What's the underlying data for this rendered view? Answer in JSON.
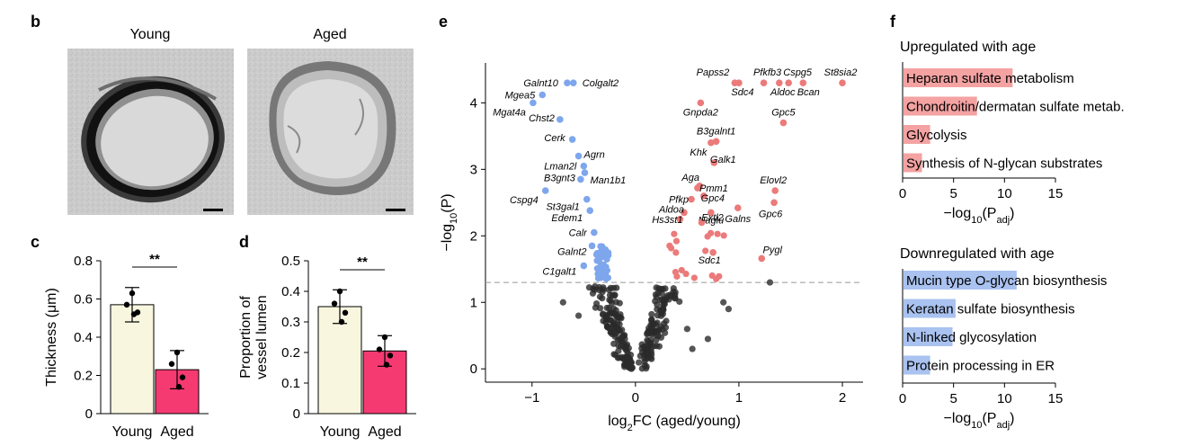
{
  "panels": {
    "b": {
      "label": "b",
      "images": [
        {
          "title": "Young",
          "alt": "Electron micrograph of young vessel cross-section"
        },
        {
          "title": "Aged",
          "alt": "Electron micrograph of aged vessel cross-section"
        }
      ]
    },
    "c": {
      "label": "c"
    },
    "d": {
      "label": "d"
    },
    "e": {
      "label": "e"
    },
    "f": {
      "label": "f"
    }
  },
  "chart_data": [
    {
      "id": "c",
      "type": "bar",
      "categories": [
        "Young",
        "Aged"
      ],
      "values": [
        0.57,
        0.23
      ],
      "errors": [
        0.09,
        0.1
      ],
      "colors": [
        "#f8f6df",
        "#f53a72"
      ],
      "points": [
        [
          0.63,
          0.57,
          0.53,
          0.52
        ],
        [
          0.32,
          0.26,
          0.19,
          0.14
        ]
      ],
      "ylabel": "Thickness (μm)",
      "ylim": [
        0,
        0.8
      ],
      "yticks": [
        0,
        0.2,
        0.4,
        0.6,
        0.8
      ],
      "yticklabels": [
        "0",
        "0.2",
        "0.4",
        "0.6",
        "0.8"
      ],
      "significance": "**"
    },
    {
      "id": "d",
      "type": "bar",
      "categories": [
        "Young",
        "Aged"
      ],
      "values": [
        0.35,
        0.205
      ],
      "errors": [
        0.055,
        0.05
      ],
      "colors": [
        "#f8f6df",
        "#f53a72"
      ],
      "points": [
        [
          0.4,
          0.36,
          0.33,
          0.3
        ],
        [
          0.25,
          0.21,
          0.19,
          0.16
        ]
      ],
      "ylabel": "Proportion of vessel lumen",
      "ylabel_lines": [
        "Proportion of",
        "vessel lumen"
      ],
      "ylim": [
        0,
        0.5
      ],
      "yticks": [
        0,
        0.1,
        0.2,
        0.3,
        0.4,
        0.5
      ],
      "yticklabels": [
        "0",
        "0.1",
        "0.2",
        "0.3",
        "0.4",
        "0.5"
      ],
      "significance": "**"
    },
    {
      "id": "e",
      "type": "scatter",
      "title": "",
      "xlabel": "log2FC (aged/young)",
      "ylabel": "−log10(P)",
      "xlim": [
        -1.45,
        2.2
      ],
      "ylim": [
        -0.2,
        4.6
      ],
      "xticks": [
        -1,
        0,
        1,
        2
      ],
      "xticklabels": [
        "−1",
        "0",
        "1",
        "2"
      ],
      "yticks": [
        0,
        1,
        2,
        3,
        4
      ],
      "yticklabels": [
        "0",
        "1",
        "2",
        "3",
        "4"
      ],
      "threshold": 1.3,
      "colors": {
        "down": "#7ea6ec",
        "up": "#ec7a7a",
        "ns": "#2a2a2a"
      },
      "labeled_genes": [
        {
          "gene": "Galnt10",
          "x": -0.66,
          "y": 4.3,
          "group": "down"
        },
        {
          "gene": "Colgalt2",
          "x": -0.6,
          "y": 4.3,
          "group": "down"
        },
        {
          "gene": "Mgea5",
          "x": -0.9,
          "y": 4.12,
          "group": "down"
        },
        {
          "gene": "Mgat4a",
          "x": -0.99,
          "y": 4.0,
          "group": "down"
        },
        {
          "gene": "Chst2",
          "x": -0.73,
          "y": 3.75,
          "group": "down"
        },
        {
          "gene": "Cerk",
          "x": -0.61,
          "y": 3.45,
          "group": "down"
        },
        {
          "gene": "Agrn",
          "x": -0.55,
          "y": 3.2,
          "group": "down"
        },
        {
          "gene": "Lman2l",
          "x": -0.5,
          "y": 3.05,
          "group": "down"
        },
        {
          "gene": "Man1b1",
          "x": -0.49,
          "y": 2.95,
          "group": "down"
        },
        {
          "gene": "B3gnt3",
          "x": -0.53,
          "y": 2.85,
          "group": "down"
        },
        {
          "gene": "Cspg4",
          "x": -0.87,
          "y": 2.68,
          "group": "down"
        },
        {
          "gene": "St3gal1",
          "x": -0.47,
          "y": 2.55,
          "group": "down"
        },
        {
          "gene": "Edem1",
          "x": -0.44,
          "y": 2.38,
          "group": "down"
        },
        {
          "gene": "Calr",
          "x": -0.4,
          "y": 2.05,
          "group": "down"
        },
        {
          "gene": "Galnt2",
          "x": -0.42,
          "y": 1.85,
          "group": "down"
        },
        {
          "gene": "C1galt1",
          "x": -0.5,
          "y": 1.55,
          "group": "down"
        },
        {
          "gene": "Papss2",
          "x": 0.96,
          "y": 4.3,
          "group": "up"
        },
        {
          "gene": "Pfkfb3",
          "x": 1.24,
          "y": 4.3,
          "group": "up"
        },
        {
          "gene": "Cspg5",
          "x": 1.48,
          "y": 4.3,
          "group": "up"
        },
        {
          "gene": "St8sia2",
          "x": 2.0,
          "y": 4.3,
          "group": "up"
        },
        {
          "gene": "Sdc4",
          "x": 1.0,
          "y": 4.3,
          "group": "up"
        },
        {
          "gene": "Aldoc",
          "x": 1.39,
          "y": 4.3,
          "group": "up"
        },
        {
          "gene": "Bcan",
          "x": 1.62,
          "y": 4.3,
          "group": "up"
        },
        {
          "gene": "Gnpda2",
          "x": 0.63,
          "y": 4.0,
          "group": "up"
        },
        {
          "gene": "Gpc5",
          "x": 1.43,
          "y": 3.7,
          "group": "up"
        },
        {
          "gene": "B3galnt1",
          "x": 0.78,
          "y": 3.42,
          "group": "up"
        },
        {
          "gene": "Khk",
          "x": 0.73,
          "y": 3.4,
          "group": "up"
        },
        {
          "gene": "Galk1",
          "x": 0.76,
          "y": 3.1,
          "group": "up"
        },
        {
          "gene": "Aga",
          "x": 0.62,
          "y": 2.75,
          "group": "up"
        },
        {
          "gene": "Pmm1",
          "x": 0.6,
          "y": 2.72,
          "group": "up"
        },
        {
          "gene": "Elovl2",
          "x": 1.35,
          "y": 2.68,
          "group": "up"
        },
        {
          "gene": "Pfkp",
          "x": 0.54,
          "y": 2.55,
          "group": "up"
        },
        {
          "gene": "Gpc4",
          "x": 0.66,
          "y": 2.6,
          "group": "up"
        },
        {
          "gene": "Gpc6",
          "x": 1.34,
          "y": 2.5,
          "group": "up"
        },
        {
          "gene": "Aldoa",
          "x": 0.47,
          "y": 2.35,
          "group": "up"
        },
        {
          "gene": "Naglu",
          "x": 0.73,
          "y": 2.35,
          "group": "up"
        },
        {
          "gene": "Galns",
          "x": 0.99,
          "y": 2.42,
          "group": "up"
        },
        {
          "gene": "Hs3st1",
          "x": 0.43,
          "y": 2.25,
          "group": "up"
        },
        {
          "gene": "Extl2",
          "x": 0.64,
          "y": 2.2,
          "group": "up"
        },
        {
          "gene": "Sdc1",
          "x": 0.75,
          "y": 1.75,
          "group": "up"
        },
        {
          "gene": "Pygl",
          "x": 1.22,
          "y": 1.66,
          "group": "up"
        }
      ],
      "gene_labels": [
        {
          "text": "Galnt10",
          "anchor": "end"
        },
        {
          "text": "Colgalt2",
          "anchor": "start"
        },
        {
          "text": "Mgea5",
          "anchor": "end"
        },
        {
          "text": "Mgat4a",
          "anchor": "end"
        },
        {
          "text": "Chst2",
          "anchor": "end"
        },
        {
          "text": "Cerk",
          "anchor": "end"
        },
        {
          "text": "Agrn",
          "anchor": "start"
        },
        {
          "text": "Lman2l",
          "anchor": "end"
        },
        {
          "text": "Man1b1",
          "anchor": "start"
        },
        {
          "text": "B3gnt3",
          "anchor": "end"
        },
        {
          "text": "Cspg4",
          "anchor": "end"
        },
        {
          "text": "St3gal1",
          "anchor": "end"
        },
        {
          "text": "Edem1",
          "anchor": "end"
        },
        {
          "text": "Calr",
          "anchor": "end"
        },
        {
          "text": "Galnt2",
          "anchor": "end"
        },
        {
          "text": "C1galt1",
          "anchor": "end"
        },
        {
          "text": "Papss2",
          "anchor": "end"
        },
        {
          "text": "Pfkfb3",
          "anchor": "middle"
        },
        {
          "text": "Cspg5",
          "anchor": "middle"
        },
        {
          "text": "St8sia2",
          "anchor": "middle"
        },
        {
          "text": "Sdc4",
          "anchor": "middle"
        },
        {
          "text": "Aldoc",
          "anchor": "middle"
        },
        {
          "text": "Bcan",
          "anchor": "middle"
        },
        {
          "text": "Gnpda2",
          "anchor": "middle"
        },
        {
          "text": "Gpc5",
          "anchor": "middle"
        },
        {
          "text": "B3galnt1",
          "anchor": "middle"
        },
        {
          "text": "Khk",
          "anchor": "middle"
        },
        {
          "text": "Galk1",
          "anchor": "middle"
        },
        {
          "text": "Aga",
          "anchor": "middle"
        },
        {
          "text": "Pmm1",
          "anchor": "middle"
        },
        {
          "text": "Elovl2",
          "anchor": "middle"
        },
        {
          "text": "Pfkp",
          "anchor": "middle"
        },
        {
          "text": "Gpc4",
          "anchor": "middle"
        },
        {
          "text": "Gpc6",
          "anchor": "middle"
        },
        {
          "text": "Aldoa",
          "anchor": "middle"
        },
        {
          "text": "Naglu",
          "anchor": "middle"
        },
        {
          "text": "Galns",
          "anchor": "middle"
        },
        {
          "text": "Hs3st1",
          "anchor": "middle"
        },
        {
          "text": "Extl2",
          "anchor": "middle"
        },
        {
          "text": "Sdc1",
          "anchor": "middle"
        },
        {
          "text": "Pygl",
          "anchor": "middle"
        }
      ]
    },
    {
      "id": "f_up",
      "type": "bar",
      "orientation": "horizontal",
      "title": "Upregulated with age",
      "categories": [
        "Heparan sulfate metabolism",
        "Chondroitin/dermatan sulfate metab.",
        "Glycolysis",
        "Synthesis of N-glycan substrates"
      ],
      "values": [
        10.8,
        7.3,
        2.7,
        1.9
      ],
      "color": "#f4a2a2",
      "xlabel": "−log10(Padj)",
      "xlim": [
        0,
        15
      ],
      "xticks": [
        0,
        5,
        10,
        15
      ],
      "xticklabels": [
        "0",
        "5",
        "10",
        "15"
      ]
    },
    {
      "id": "f_down",
      "type": "bar",
      "orientation": "horizontal",
      "title": "Downregulated with age",
      "categories": [
        "Mucin type O-glycan biosynthesis",
        "Keratan sulfate biosynthesis",
        "N-linked glycosylation",
        "Protein processing in ER"
      ],
      "values": [
        11.2,
        5.2,
        4.9,
        2.7
      ],
      "color": "#a9c2f0",
      "xlabel": "−log10(Padj)",
      "xlim": [
        0,
        15
      ],
      "xticks": [
        0,
        5,
        10,
        15
      ],
      "xticklabels": [
        "0",
        "5",
        "10",
        "15"
      ]
    }
  ]
}
